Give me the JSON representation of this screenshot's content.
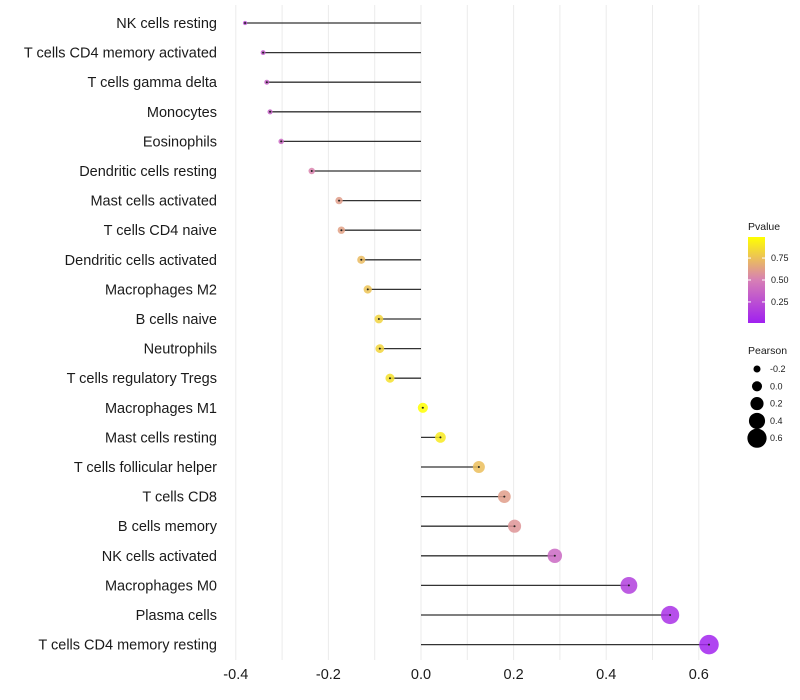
{
  "chart_data": {
    "type": "lollipop",
    "title": "",
    "xlabel": "",
    "ylabel": "",
    "xlim": [
      -0.41,
      0.65
    ],
    "xticks": [
      -0.4,
      -0.2,
      0.0,
      0.2,
      0.4,
      0.6
    ],
    "xtick_labels": [
      "-0.4",
      "-0.2",
      "0.0",
      "0.2",
      "0.4",
      "0.6"
    ],
    "grid": true,
    "categories": [
      "NK cells resting",
      "T cells CD4 memory activated",
      "T cells gamma delta",
      "Monocytes",
      "Eosinophils",
      "Dendritic cells resting",
      "Mast cells activated",
      "T cells CD4 naive",
      "Dendritic cells activated",
      "Macrophages M2",
      "B cells naive",
      "Neutrophils",
      "T cells regulatory  Tregs ",
      "Macrophages M1",
      "Mast cells resting",
      "T cells follicular helper",
      "T cells CD8",
      "B cells memory",
      "NK cells activated",
      "Macrophages M0",
      "Plasma cells",
      "T cells CD4 memory resting"
    ],
    "pearson": [
      -0.38,
      -0.341,
      -0.333,
      -0.326,
      -0.302,
      -0.236,
      -0.177,
      -0.172,
      -0.129,
      -0.115,
      -0.091,
      -0.089,
      -0.067,
      0.004,
      0.042,
      0.125,
      0.18,
      0.202,
      0.289,
      0.449,
      0.538,
      0.622
    ],
    "pvalue": [
      0.25,
      0.32,
      0.34,
      0.35,
      0.38,
      0.52,
      0.62,
      0.63,
      0.73,
      0.76,
      0.82,
      0.83,
      0.87,
      0.99,
      0.91,
      0.74,
      0.62,
      0.58,
      0.38,
      0.17,
      0.09,
      0.03
    ],
    "legend_color": {
      "title": "Pvalue",
      "ticks": [
        0.25,
        0.5,
        0.75
      ],
      "tick_labels": [
        "0.25",
        "0.50",
        "0.75"
      ],
      "range": [
        0.01,
        0.99
      ],
      "low_color": "#A020F0",
      "high_color": "#FFFF00",
      "placement": "right"
    },
    "legend_size": {
      "title": "Pearson",
      "values": [
        -0.2,
        0.0,
        0.2,
        0.4,
        0.6
      ],
      "labels": [
        "-0.2",
        "0.0",
        "0.2",
        "0.4",
        "0.6"
      ],
      "placement": "right"
    },
    "colors": {
      "segment": "#333333",
      "grid": "#ebebeb",
      "legend_dot": "#000000"
    }
  }
}
